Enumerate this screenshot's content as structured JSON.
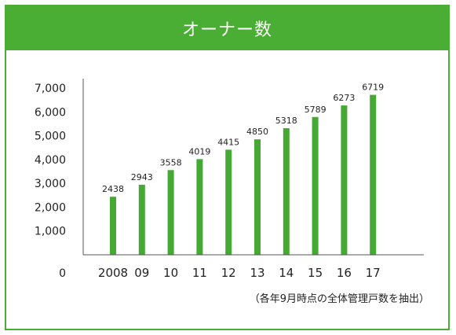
{
  "title": "オーナー数",
  "note": "（各年9月時点の全体管理戸数を抽出）",
  "colors": {
    "accent": "#4aae34",
    "bar": "#45a934",
    "text": "#222222"
  },
  "chart_data": {
    "type": "bar",
    "categories": [
      "2008",
      "09",
      "10",
      "11",
      "12",
      "13",
      "14",
      "15",
      "16",
      "17"
    ],
    "values": [
      2438,
      2943,
      3558,
      4019,
      4415,
      4850,
      5318,
      5789,
      6273,
      6719
    ],
    "data_labels": [
      "2438",
      "2943",
      "3558",
      "4019",
      "4415",
      "4850",
      "5318",
      "5789",
      "6273",
      "6719"
    ],
    "y_ticks": [
      0,
      1000,
      2000,
      3000,
      4000,
      5000,
      6000,
      7000
    ],
    "y_tick_labels": [
      "0",
      "1,000",
      "2,000",
      "3,000",
      "4,000",
      "5,000",
      "6,000",
      "7,000"
    ],
    "ylim": [
      0,
      7400
    ],
    "grid": false,
    "legend": "none"
  }
}
